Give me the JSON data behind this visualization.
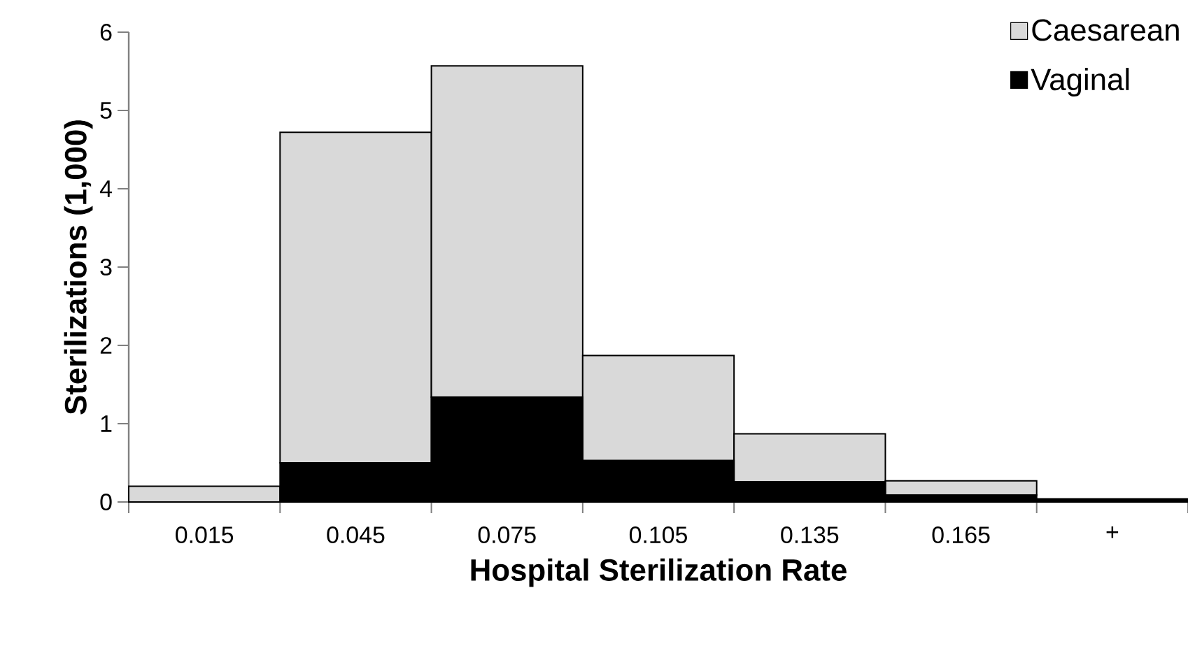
{
  "chart_data": {
    "type": "bar",
    "stacked": true,
    "xlabel": "Hospital Sterilization Rate",
    "ylabel": "Sterilizations (1,000)",
    "categories": [
      "0.015",
      "0.045",
      "0.075",
      "0.105",
      "0.135",
      "0.165",
      "+"
    ],
    "series": [
      {
        "name": "Vaginal",
        "color": "#000000",
        "values": [
          0,
          0.5,
          1.34,
          0.53,
          0.26,
          0.09,
          0.04
        ]
      },
      {
        "name": "Caesarean",
        "color": "#d9d9d9",
        "values": [
          0.2,
          4.22,
          4.23,
          1.34,
          0.61,
          0.18,
          0
        ]
      }
    ],
    "ylim": [
      0,
      6
    ],
    "yticks": [
      0,
      1,
      2,
      3,
      4,
      5,
      6
    ],
    "legend": "top right"
  }
}
